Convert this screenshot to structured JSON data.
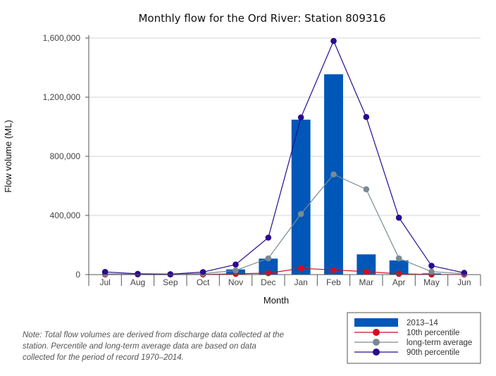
{
  "chart_data": {
    "type": "bar",
    "title": "Monthly flow for the Ord River: Station 809316",
    "xlabel": "Month",
    "ylabel": "Flow volume (ML)",
    "ylim": [
      0,
      1600000
    ],
    "yticks": [
      0,
      400000,
      800000,
      1200000,
      1600000
    ],
    "ytick_labels": [
      "0",
      "400,000",
      "800,000",
      "1,200,000",
      "1,600,000"
    ],
    "categories": [
      "Jul",
      "Aug",
      "Sep",
      "Oct",
      "Nov",
      "Dec",
      "Jan",
      "Feb",
      "Mar",
      "Apr",
      "May",
      "Jun"
    ],
    "grid": true,
    "legend_position": "bottom-right",
    "series": [
      {
        "name": "2013–14",
        "kind": "bar",
        "color": "#0057b7",
        "values": [
          1000,
          500,
          200,
          2000,
          35000,
          108000,
          1048000,
          1355000,
          137000,
          96000,
          8000,
          2000
        ]
      },
      {
        "name": "10th percentile",
        "kind": "line",
        "color": "#cc1122",
        "values": [
          800,
          300,
          100,
          1000,
          5000,
          10000,
          42000,
          32000,
          20000,
          5000,
          1000,
          500
        ]
      },
      {
        "name": "long-term average",
        "kind": "line",
        "color": "#7a8a92",
        "values": [
          5000,
          2000,
          1000,
          7000,
          28000,
          110000,
          410000,
          678000,
          577000,
          110000,
          20000,
          6000
        ]
      },
      {
        "name": "90th percentile",
        "kind": "line",
        "color": "#2a0a90",
        "values": [
          18000,
          5000,
          3000,
          17000,
          68000,
          250000,
          1063000,
          1580000,
          1066000,
          385000,
          60000,
          12000
        ]
      }
    ]
  },
  "note": "Note: Total flow volumes are derived from discharge data collected at the station. Percentile and long-term average data are based on data collected for the period of record 1970–2014."
}
